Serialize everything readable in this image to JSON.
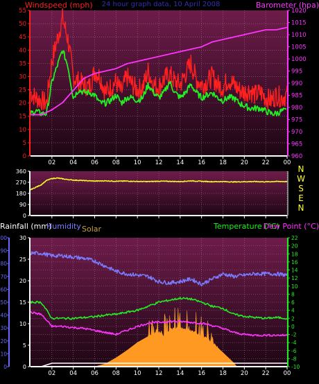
{
  "colors": {
    "background": "#000000",
    "plot_top": "#6e1c4a",
    "plot_bottom": "#1e0614",
    "axis_white": "#ffffff",
    "windspeed_label": "#ff2020",
    "barometer_label": "#ff33ff",
    "title_blue": "#3030b0",
    "rain_axis": "#6a6aff",
    "temp_axis": "#22ee22",
    "solar_label": "#c8a040"
  },
  "chart_data": [
    {
      "id": "wind",
      "type": "line",
      "title": "24 hour graph data, 10 April 2008",
      "left_label": "Windspeed (mph)",
      "right_label": "Barometer (hpa)",
      "y_left": {
        "min": 0,
        "max": 55,
        "ticks": [
          "0",
          "5",
          "10",
          "15",
          "20",
          "25",
          "30",
          "35",
          "40",
          "45",
          "50",
          "55"
        ]
      },
      "y_right": {
        "min": 960,
        "max": 1020,
        "ticks": [
          "960",
          "965",
          "970",
          "975",
          "980",
          "985",
          "990",
          "995",
          "1000",
          "1005",
          "1010",
          "1015",
          "1020"
        ]
      },
      "x_ticks": [
        "02",
        "04",
        "06",
        "08",
        "10",
        "12",
        "14",
        "16",
        "18",
        "20",
        "22",
        "00"
      ],
      "series": [
        {
          "color": "#ff2020",
          "axis": "left",
          "x": [
            0,
            0.5,
            1,
            1.5,
            2,
            2.5,
            3,
            3.5,
            4,
            4.5,
            5,
            5.5,
            6,
            6.5,
            7,
            7.5,
            8,
            8.5,
            9,
            9.5,
            10,
            10.5,
            11,
            11.5,
            12,
            12.5,
            13,
            13.5,
            14,
            14.5,
            15,
            15.5,
            16,
            16.5,
            17,
            17.5,
            18,
            18.5,
            19,
            19.5,
            20,
            20.5,
            21,
            21.5,
            22,
            22.5,
            23,
            23.5,
            24
          ],
          "values": [
            24,
            22,
            21,
            20,
            36,
            44,
            52,
            44,
            30,
            28,
            27,
            26,
            32,
            30,
            24,
            26,
            28,
            24,
            30,
            27,
            25,
            26,
            32,
            27,
            26,
            29,
            31,
            28,
            27,
            31,
            35,
            29,
            27,
            28,
            30,
            27,
            26,
            29,
            27,
            25,
            24,
            25,
            23,
            24,
            22,
            21,
            23,
            22,
            23
          ]
        },
        {
          "color": "#22ee22",
          "axis": "left",
          "x": [
            0,
            0.5,
            1,
            1.5,
            2,
            2.5,
            3,
            3.5,
            4,
            4.5,
            5,
            5.5,
            6,
            6.5,
            7,
            7.5,
            8,
            8.5,
            9,
            9.5,
            10,
            10.5,
            11,
            11.5,
            12,
            12.5,
            13,
            13.5,
            14,
            14.5,
            15,
            15.5,
            16,
            16.5,
            17,
            17.5,
            18,
            18.5,
            19,
            19.5,
            20,
            20.5,
            21,
            21.5,
            22,
            22.5,
            23,
            23.5,
            24
          ],
          "values": [
            16,
            17,
            16,
            16,
            28,
            34,
            40,
            34,
            22,
            25,
            24,
            24,
            23,
            20,
            20,
            21,
            23,
            20,
            22,
            22,
            21,
            22,
            27,
            24,
            22,
            24,
            28,
            24,
            22,
            24,
            27,
            24,
            22,
            23,
            24,
            22,
            21,
            22,
            22,
            20,
            19,
            18,
            18,
            18,
            17,
            16,
            16,
            17,
            17
          ]
        },
        {
          "color": "#ff33ff",
          "axis": "right",
          "x": [
            0,
            1,
            2,
            3,
            4,
            5,
            6,
            7,
            8,
            9,
            10,
            11,
            12,
            13,
            14,
            15,
            16,
            17,
            18,
            19,
            20,
            21,
            22,
            23,
            24
          ],
          "values": [
            977,
            977,
            979,
            982,
            987,
            992,
            994,
            995,
            996,
            998,
            999,
            1000,
            1001,
            1002,
            1003,
            1004,
            1005,
            1007,
            1008,
            1009,
            1010,
            1011,
            1012,
            1012,
            1013
          ]
        }
      ]
    },
    {
      "id": "direction",
      "type": "line",
      "y_left": {
        "min": 0,
        "max": 360,
        "ticks": [
          "0",
          "90",
          "180",
          "270",
          "360"
        ]
      },
      "right_labels": [
        "N",
        "W",
        "S",
        "E",
        "N"
      ],
      "series": [
        {
          "color": "#ffff22",
          "x": [
            0,
            0.5,
            1,
            1.5,
            2,
            2.5,
            3,
            3.5,
            4,
            5,
            6,
            7,
            8,
            9,
            10,
            11,
            12,
            13,
            14,
            15,
            16,
            17,
            18,
            19,
            20,
            21,
            22,
            23,
            24
          ],
          "values": [
            210,
            230,
            250,
            285,
            300,
            305,
            298,
            292,
            288,
            284,
            280,
            282,
            279,
            280,
            277,
            276,
            279,
            278,
            276,
            282,
            278,
            275,
            276,
            273,
            275,
            276,
            274,
            277,
            276
          ]
        }
      ]
    },
    {
      "id": "temp",
      "type": "line",
      "labels": {
        "rainfall": "Rainfall (mm)",
        "humidity": "Humidity",
        "solar": "Solar",
        "temperature": "Temperature (°C)",
        "dewpoint": "Dew Point (°C)"
      },
      "y_rain": {
        "min": 0,
        "max": 30,
        "ticks": [
          "0",
          "5",
          "10",
          "15",
          "20",
          "25",
          "30"
        ]
      },
      "y_humidity": {
        "min": 0,
        "max": 100,
        "ticks": [
          "0",
          "10",
          "20",
          "30",
          "40",
          "50",
          "60",
          "70",
          "80",
          "90",
          "100"
        ]
      },
      "y_temp": {
        "min": -10,
        "max": 22,
        "ticks": [
          "-10",
          "-8",
          "-6",
          "-4",
          "-2",
          "0",
          "2",
          "4",
          "6",
          "8",
          "10",
          "12",
          "14",
          "16",
          "18",
          "20",
          "22"
        ]
      },
      "x_ticks": [
        "02",
        "04",
        "06",
        "08",
        "10",
        "12",
        "14",
        "16",
        "18",
        "20",
        "22",
        "00"
      ],
      "series": [
        {
          "name": "Humidity",
          "color": "#7b7bff",
          "axis": "humidity",
          "x": [
            0,
            1,
            2,
            3,
            4,
            5,
            6,
            7,
            8,
            9,
            10,
            11,
            12,
            13,
            14,
            15,
            16,
            17,
            18,
            19,
            20,
            21,
            22,
            23,
            24
          ],
          "values": [
            88,
            88,
            86,
            86,
            85,
            84,
            82,
            78,
            74,
            72,
            71,
            70,
            66,
            65,
            66,
            68,
            64,
            68,
            72,
            70,
            71,
            72,
            72,
            72,
            71
          ]
        },
        {
          "name": "Temperature",
          "color": "#22ee22",
          "axis": "temp",
          "x": [
            0,
            1,
            2,
            3,
            4,
            5,
            6,
            7,
            8,
            9,
            10,
            11,
            12,
            13,
            14,
            15,
            16,
            17,
            18,
            19,
            20,
            21,
            22,
            23,
            24
          ],
          "values": [
            6,
            6,
            2,
            2,
            2,
            2.2,
            2.4,
            2.8,
            3,
            3.5,
            4,
            5,
            6,
            6.5,
            7,
            6.8,
            6,
            5,
            4.5,
            3,
            2.5,
            2.2,
            2,
            2.2,
            2
          ]
        },
        {
          "name": "Dew Point",
          "color": "#ff33ff",
          "axis": "temp",
          "x": [
            0,
            1,
            2,
            3,
            4,
            5,
            6,
            7,
            8,
            9,
            10,
            11,
            12,
            13,
            14,
            15,
            16,
            17,
            18,
            19,
            20,
            21,
            22,
            23,
            24
          ],
          "values": [
            3.5,
            3,
            0,
            0,
            -0.3,
            -0.5,
            -1,
            -1.5,
            -2,
            -1,
            0,
            0.8,
            1,
            1.2,
            1.2,
            1,
            0.8,
            0.2,
            -0.5,
            -1.5,
            -2,
            -2.2,
            -2.2,
            -2.2,
            -2.2
          ]
        },
        {
          "name": "Solar",
          "color": "#ff9922",
          "axis": "temp",
          "x": [
            0,
            6,
            7,
            8,
            9,
            10,
            11,
            12,
            12.5,
            13,
            14,
            14.8,
            15.5,
            16,
            17,
            18,
            19,
            19.3,
            24
          ],
          "values": [
            -10,
            -10,
            -9.3,
            -7.8,
            -6,
            -4,
            -2.5,
            -1.2,
            -2.5,
            -0.8,
            -0.5,
            -1,
            -1.5,
            -2.2,
            -4,
            -6.5,
            -9,
            -10,
            -10
          ]
        },
        {
          "name": "Rainfall",
          "color": "#ffffff",
          "axis": "rain",
          "x": [
            0,
            1,
            2,
            3,
            4,
            5,
            6,
            7,
            8,
            9,
            10,
            11,
            12,
            13,
            14,
            15,
            16,
            17,
            18,
            19,
            20,
            21,
            22,
            23,
            24
          ],
          "values": [
            0,
            0,
            0.8,
            0.8,
            0.8,
            0.8,
            0.8,
            0.8,
            0.8,
            0.8,
            0.8,
            0.8,
            0.8,
            0.8,
            0.8,
            0.8,
            0.8,
            0.8,
            0.8,
            0.8,
            0.8,
            0.8,
            0.8,
            0.8,
            0.8
          ]
        }
      ]
    }
  ]
}
